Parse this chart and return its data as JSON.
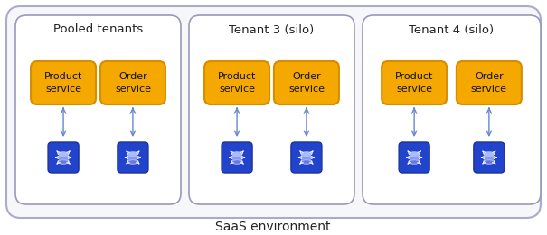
{
  "bg_color": "#ffffff",
  "outer_border_color": "#aaaacc",
  "outer_bg": "#f7f7fa",
  "inner_border_color": "#9999bb",
  "inner_bg": "#ffffff",
  "service_box_color": "#F5A800",
  "service_box_border": "#d48e00",
  "db_box_color": "#2244cc",
  "db_box_dark": "#1a3399",
  "arrow_color": "#6688cc",
  "title_color": "#222222",
  "service_text_color": "#111111",
  "saas_label": "SaaS environment",
  "groups": [
    {
      "title": "Pooled tenants",
      "services": [
        "Product\nservice",
        "Order\nservice"
      ]
    },
    {
      "title": "Tenant 3 (silo)",
      "services": [
        "Product\nservice",
        "Order\nservice"
      ]
    },
    {
      "title": "Tenant 4 (silo)",
      "services": [
        "Product\nservice",
        "Order\nservice"
      ]
    }
  ],
  "figsize": [
    6.05,
    2.61
  ],
  "dpi": 100
}
